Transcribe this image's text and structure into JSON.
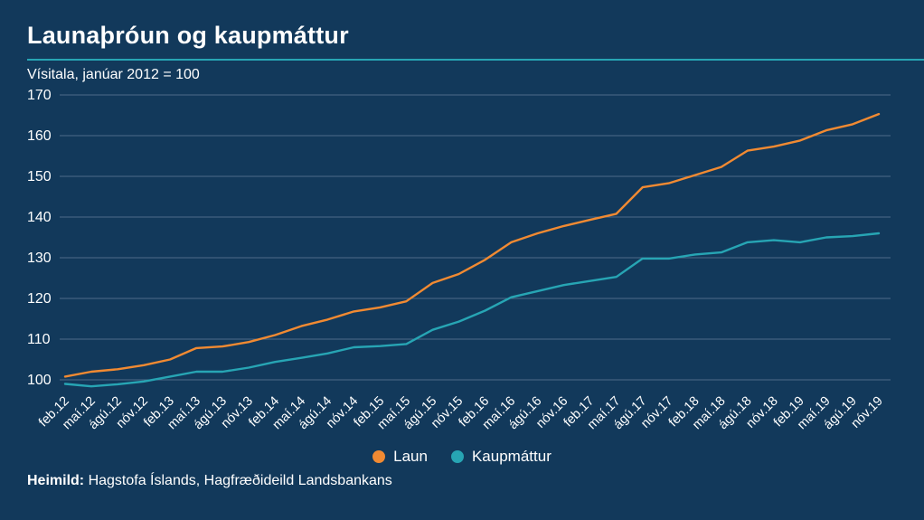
{
  "header": {
    "title": "Launaþróun og kaupmáttur",
    "subtitle": "Vísitala, janúar 2012 = 100"
  },
  "footer": {
    "source_label": "Heimild:",
    "source_text": " Hagstofa Íslands, Hagfræðideild Landsbankans"
  },
  "legend": {
    "items": [
      {
        "label": "Laun",
        "color": "#f18a32"
      },
      {
        "label": "Kaupmáttur",
        "color": "#27a5b4"
      }
    ]
  },
  "colors": {
    "background": "#12395b",
    "accent_teal": "#27a5b4",
    "accent_orange": "#f18a32",
    "gridline": "#4d6b88",
    "text": "#ffffff"
  },
  "chart_data": {
    "type": "line",
    "title": "Launaþróun og kaupmáttur",
    "subtitle": "Vísitala, janúar 2012 = 100",
    "grid": true,
    "legend_position": "bottom",
    "ylim": [
      96,
      170
    ],
    "y_ticks": [
      100,
      110,
      120,
      130,
      140,
      150,
      160,
      170
    ],
    "x_labels": [
      "feb.12",
      "maí.12",
      "ágú.12",
      "nóv.12",
      "feb.13",
      "maí.13",
      "ágú.13",
      "nóv.13",
      "feb.14",
      "maí.14",
      "ágú.14",
      "nóv.14",
      "feb.15",
      "maí.15",
      "ágú.15",
      "nóv.15",
      "feb.16",
      "maí.16",
      "ágú.16",
      "nóv.16",
      "feb.17",
      "maí.17",
      "ágú.17",
      "nóv.17",
      "feb.18",
      "maí.18",
      "ágú.18",
      "nóv.18",
      "feb.19",
      "maí.19",
      "ágú.19",
      "nóv.19"
    ],
    "series": [
      {
        "name": "Laun",
        "color": "#f18a32",
        "values": [
          100.8,
          102.0,
          102.6,
          103.6,
          105.0,
          107.8,
          108.2,
          109.3,
          111.0,
          113.2,
          114.8,
          116.8,
          117.8,
          119.3,
          123.8,
          126.0,
          129.5,
          133.8,
          136.0,
          137.8,
          139.3,
          140.8,
          147.3,
          148.3,
          150.3,
          152.3,
          156.3,
          157.3,
          158.8,
          161.3,
          162.8,
          165.3
        ]
      },
      {
        "name": "Kaupmáttur",
        "color": "#27a5b4",
        "values": [
          99.0,
          98.4,
          98.9,
          99.6,
          100.8,
          102.0,
          102.0,
          103.0,
          104.4,
          105.4,
          106.5,
          108.0,
          108.3,
          108.8,
          112.3,
          114.3,
          117.0,
          120.3,
          121.8,
          123.3,
          124.3,
          125.3,
          129.8,
          129.8,
          130.8,
          131.3,
          133.8,
          134.3,
          133.8,
          135.0,
          135.3,
          136.0
        ]
      }
    ]
  }
}
